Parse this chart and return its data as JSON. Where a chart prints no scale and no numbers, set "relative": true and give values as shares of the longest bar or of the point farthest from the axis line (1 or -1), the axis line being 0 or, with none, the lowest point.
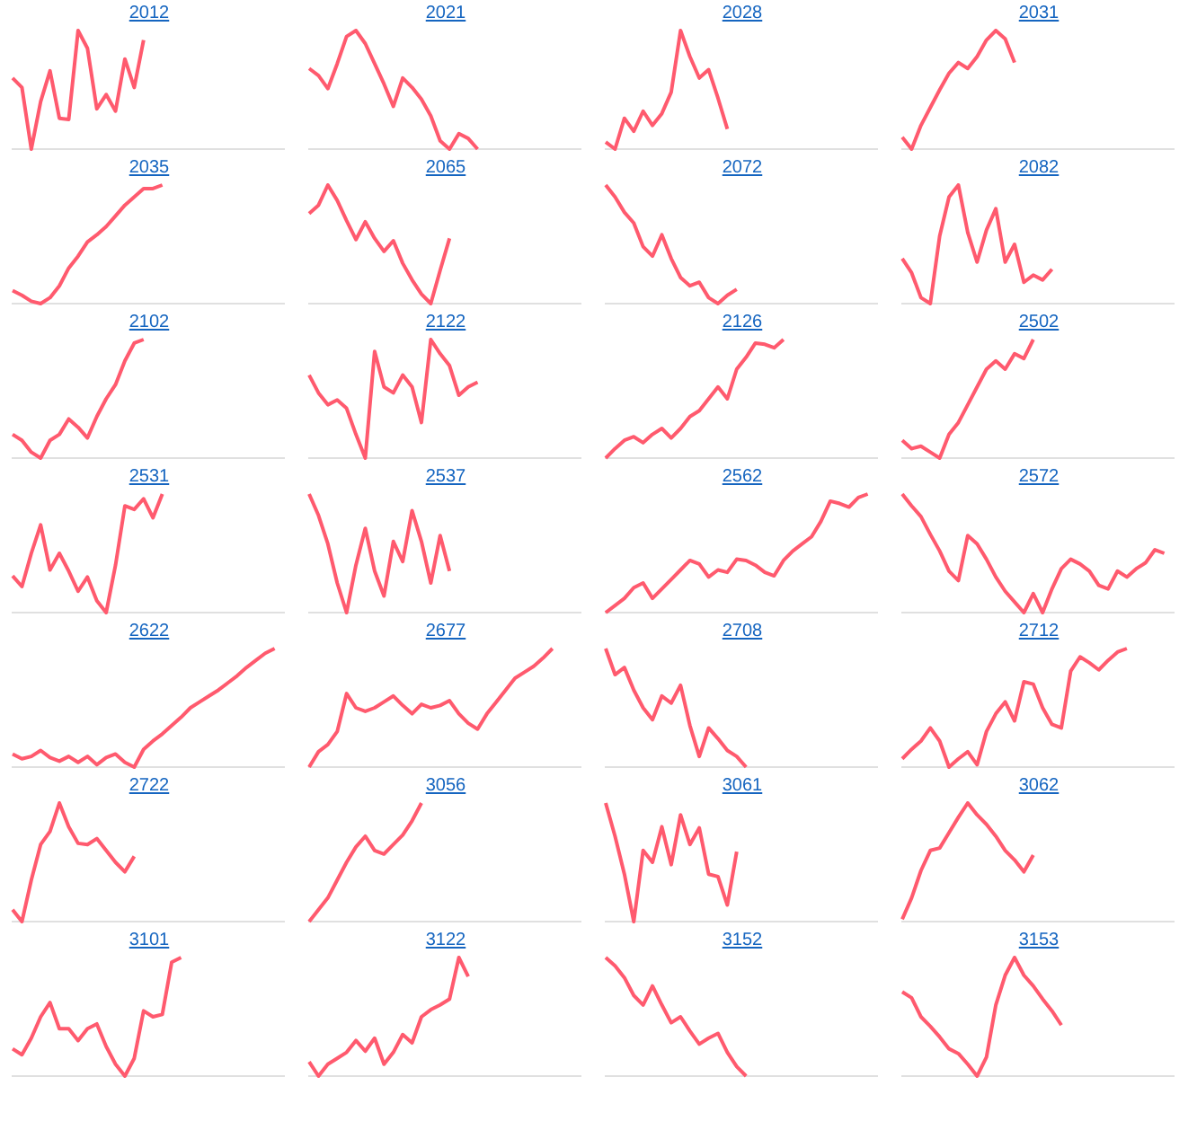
{
  "chart_data": [
    {
      "type": "line",
      "title": "2012",
      "relative": true,
      "marker": "none",
      "categories": [
        null,
        null,
        null,
        null,
        null,
        null,
        null,
        null,
        null,
        null,
        null,
        null,
        null,
        null,
        null,
        null,
        null,
        null,
        null,
        null,
        null,
        null,
        null,
        null,
        null,
        null,
        null,
        null,
        null,
        null
      ],
      "series": [
        {
          "color": "#ff5a6e",
          "values": [
            0.6,
            0.52,
            0.0,
            0.4,
            0.66,
            0.26,
            0.25,
            1.0,
            0.85,
            0.34,
            0.46,
            0.32,
            0.76,
            0.52,
            0.92,
            null,
            null,
            null,
            null,
            null,
            null,
            null,
            null,
            null,
            null,
            null,
            null,
            null,
            null,
            null
          ]
        }
      ]
    },
    {
      "type": "line",
      "title": "2021",
      "relative": true,
      "marker": "none",
      "categories": [
        null,
        null,
        null,
        null,
        null,
        null,
        null,
        null,
        null,
        null,
        null,
        null,
        null,
        null,
        null,
        null,
        null,
        null,
        null,
        null,
        null,
        null,
        null,
        null,
        null,
        null,
        null,
        null,
        null,
        null
      ],
      "series": [
        {
          "color": "#ff5a6e",
          "values": [
            0.68,
            0.62,
            0.51,
            0.72,
            0.95,
            1.0,
            0.89,
            0.72,
            0.55,
            0.36,
            0.6,
            0.52,
            0.42,
            0.28,
            0.07,
            0.0,
            0.13,
            0.09,
            0.0,
            null,
            null,
            null,
            null,
            null,
            null,
            null,
            null,
            null,
            null,
            null
          ]
        }
      ]
    },
    {
      "type": "line",
      "title": "2028",
      "relative": true,
      "marker": "none",
      "categories": [
        null,
        null,
        null,
        null,
        null,
        null,
        null,
        null,
        null,
        null,
        null,
        null,
        null,
        null,
        null,
        null,
        null,
        null,
        null,
        null,
        null,
        null,
        null,
        null,
        null,
        null,
        null,
        null,
        null,
        null
      ],
      "series": [
        {
          "color": "#ff5a6e",
          "values": [
            0.06,
            0.0,
            0.26,
            0.15,
            0.32,
            0.2,
            0.3,
            0.48,
            1.0,
            0.78,
            0.6,
            0.67,
            0.43,
            0.17,
            null,
            null,
            null,
            null,
            null,
            null,
            null,
            null,
            null,
            null,
            null,
            null,
            null,
            null,
            null,
            null
          ]
        }
      ]
    },
    {
      "type": "line",
      "title": "2031",
      "relative": true,
      "marker": "none",
      "categories": [
        null,
        null,
        null,
        null,
        null,
        null,
        null,
        null,
        null,
        null,
        null,
        null,
        null,
        null,
        null,
        null,
        null,
        null,
        null,
        null,
        null,
        null,
        null,
        null,
        null,
        null,
        null,
        null,
        null,
        null
      ],
      "series": [
        {
          "color": "#ff5a6e",
          "values": [
            0.1,
            0.0,
            0.2,
            0.35,
            0.5,
            0.64,
            0.73,
            0.68,
            0.78,
            0.92,
            1.0,
            0.93,
            0.73,
            null,
            null,
            null,
            null,
            null,
            null,
            null,
            null,
            null,
            null,
            null,
            null,
            null,
            null,
            null,
            null,
            null
          ]
        }
      ]
    },
    {
      "type": "line",
      "title": "2035",
      "relative": true,
      "marker": "none",
      "categories": [
        null,
        null,
        null,
        null,
        null,
        null,
        null,
        null,
        null,
        null,
        null,
        null,
        null,
        null,
        null,
        null,
        null,
        null,
        null,
        null,
        null,
        null,
        null,
        null,
        null,
        null,
        null,
        null,
        null,
        null
      ],
      "series": [
        {
          "color": "#ff5a6e",
          "values": [
            0.11,
            0.07,
            0.02,
            0.0,
            0.05,
            0.15,
            0.3,
            0.4,
            0.52,
            0.58,
            0.65,
            0.74,
            0.83,
            0.9,
            0.97,
            0.97,
            1.0,
            null,
            null,
            null,
            null,
            null,
            null,
            null,
            null,
            null,
            null,
            null,
            null,
            null
          ]
        }
      ]
    },
    {
      "type": "line",
      "title": "2065",
      "relative": true,
      "marker": "none",
      "categories": [
        null,
        null,
        null,
        null,
        null,
        null,
        null,
        null,
        null,
        null,
        null,
        null,
        null,
        null,
        null,
        null,
        null,
        null,
        null,
        null,
        null,
        null,
        null,
        null,
        null,
        null,
        null,
        null,
        null,
        null
      ],
      "series": [
        {
          "color": "#ff5a6e",
          "values": [
            0.76,
            0.83,
            1.0,
            0.87,
            0.7,
            0.54,
            0.69,
            0.55,
            0.44,
            0.53,
            0.34,
            0.2,
            0.08,
            0.0,
            0.28,
            0.55,
            null,
            null,
            null,
            null,
            null,
            null,
            null,
            null,
            null,
            null,
            null,
            null,
            null,
            null
          ]
        }
      ]
    },
    {
      "type": "line",
      "title": "2072",
      "relative": true,
      "marker": "none",
      "categories": [
        null,
        null,
        null,
        null,
        null,
        null,
        null,
        null,
        null,
        null,
        null,
        null,
        null,
        null,
        null,
        null,
        null,
        null,
        null,
        null,
        null,
        null,
        null,
        null,
        null,
        null,
        null,
        null,
        null,
        null
      ],
      "series": [
        {
          "color": "#ff5a6e",
          "values": [
            1.0,
            0.9,
            0.77,
            0.68,
            0.48,
            0.4,
            0.58,
            0.38,
            0.22,
            0.15,
            0.18,
            0.05,
            0.0,
            0.07,
            0.12,
            null,
            null,
            null,
            null,
            null,
            null,
            null,
            null,
            null,
            null,
            null,
            null,
            null,
            null,
            null
          ]
        }
      ]
    },
    {
      "type": "line",
      "title": "2082",
      "relative": true,
      "marker": "none",
      "categories": [
        null,
        null,
        null,
        null,
        null,
        null,
        null,
        null,
        null,
        null,
        null,
        null,
        null,
        null,
        null,
        null,
        null,
        null,
        null,
        null,
        null,
        null,
        null,
        null,
        null,
        null,
        null,
        null,
        null,
        null
      ],
      "series": [
        {
          "color": "#ff5a6e",
          "values": [
            0.38,
            0.26,
            0.05,
            0.0,
            0.57,
            0.9,
            1.0,
            0.6,
            0.35,
            0.62,
            0.8,
            0.35,
            0.5,
            0.18,
            0.24,
            0.2,
            0.29,
            null,
            null,
            null,
            null,
            null,
            null,
            null,
            null,
            null,
            null,
            null,
            null,
            null
          ]
        }
      ]
    },
    {
      "type": "line",
      "title": "2102",
      "relative": true,
      "marker": "none",
      "categories": [
        null,
        null,
        null,
        null,
        null,
        null,
        null,
        null,
        null,
        null,
        null,
        null,
        null,
        null,
        null,
        null,
        null,
        null,
        null,
        null,
        null,
        null,
        null,
        null,
        null,
        null,
        null,
        null,
        null,
        null
      ],
      "series": [
        {
          "color": "#ff5a6e",
          "values": [
            0.2,
            0.15,
            0.05,
            0.0,
            0.15,
            0.2,
            0.33,
            0.26,
            0.17,
            0.35,
            0.5,
            0.62,
            0.82,
            0.97,
            1.0,
            null,
            null,
            null,
            null,
            null,
            null,
            null,
            null,
            null,
            null,
            null,
            null,
            null,
            null,
            null
          ]
        }
      ]
    },
    {
      "type": "line",
      "title": "2122",
      "relative": true,
      "marker": "none",
      "categories": [
        null,
        null,
        null,
        null,
        null,
        null,
        null,
        null,
        null,
        null,
        null,
        null,
        null,
        null,
        null,
        null,
        null,
        null,
        null,
        null,
        null,
        null,
        null,
        null,
        null,
        null,
        null,
        null,
        null,
        null
      ],
      "series": [
        {
          "color": "#ff5a6e",
          "values": [
            0.7,
            0.55,
            0.45,
            0.49,
            0.42,
            0.2,
            0.0,
            0.9,
            0.6,
            0.55,
            0.7,
            0.6,
            0.3,
            1.0,
            0.88,
            0.78,
            0.53,
            0.6,
            0.64,
            null,
            null,
            null,
            null,
            null,
            null,
            null,
            null,
            null,
            null,
            null
          ]
        }
      ]
    },
    {
      "type": "line",
      "title": "2126",
      "relative": true,
      "marker": "none",
      "categories": [
        null,
        null,
        null,
        null,
        null,
        null,
        null,
        null,
        null,
        null,
        null,
        null,
        null,
        null,
        null,
        null,
        null,
        null,
        null,
        null,
        null,
        null,
        null,
        null,
        null,
        null,
        null,
        null,
        null,
        null
      ],
      "series": [
        {
          "color": "#ff5a6e",
          "values": [
            0.0,
            0.08,
            0.15,
            0.18,
            0.13,
            0.2,
            0.25,
            0.17,
            0.25,
            0.35,
            0.4,
            0.5,
            0.6,
            0.5,
            0.75,
            0.85,
            0.97,
            0.96,
            0.93,
            1.0,
            null,
            null,
            null,
            null,
            null,
            null,
            null,
            null,
            null,
            null
          ]
        }
      ]
    },
    {
      "type": "line",
      "title": "2502",
      "relative": true,
      "marker": "none",
      "categories": [
        null,
        null,
        null,
        null,
        null,
        null,
        null,
        null,
        null,
        null,
        null,
        null,
        null,
        null,
        null,
        null,
        null,
        null,
        null,
        null,
        null,
        null,
        null,
        null,
        null,
        null,
        null,
        null,
        null,
        null
      ],
      "series": [
        {
          "color": "#ff5a6e",
          "values": [
            0.15,
            0.08,
            0.1,
            0.05,
            0.0,
            0.2,
            0.3,
            0.45,
            0.6,
            0.75,
            0.82,
            0.75,
            0.88,
            0.84,
            1.0,
            null,
            null,
            null,
            null,
            null,
            null,
            null,
            null,
            null,
            null,
            null,
            null,
            null,
            null,
            null
          ]
        }
      ]
    },
    {
      "type": "line",
      "title": "2531",
      "relative": true,
      "marker": "none",
      "categories": [
        null,
        null,
        null,
        null,
        null,
        null,
        null,
        null,
        null,
        null,
        null,
        null,
        null,
        null,
        null,
        null,
        null,
        null,
        null,
        null,
        null,
        null,
        null,
        null,
        null,
        null,
        null,
        null,
        null,
        null
      ],
      "series": [
        {
          "color": "#ff5a6e",
          "values": [
            0.31,
            0.22,
            0.5,
            0.74,
            0.36,
            0.5,
            0.35,
            0.18,
            0.3,
            0.1,
            0.0,
            0.4,
            0.9,
            0.87,
            0.96,
            0.8,
            1.0,
            null,
            null,
            null,
            null,
            null,
            null,
            null,
            null,
            null,
            null,
            null,
            null,
            null
          ]
        }
      ]
    },
    {
      "type": "line",
      "title": "2537",
      "relative": true,
      "marker": "none",
      "categories": [
        null,
        null,
        null,
        null,
        null,
        null,
        null,
        null,
        null,
        null,
        null,
        null,
        null,
        null,
        null,
        null,
        null,
        null,
        null,
        null,
        null,
        null,
        null,
        null,
        null,
        null,
        null,
        null,
        null,
        null
      ],
      "series": [
        {
          "color": "#ff5a6e",
          "values": [
            1.0,
            0.82,
            0.58,
            0.25,
            0.0,
            0.4,
            0.71,
            0.35,
            0.14,
            0.6,
            0.43,
            0.86,
            0.6,
            0.25,
            0.65,
            0.35,
            null,
            null,
            null,
            null,
            null,
            null,
            null,
            null,
            null,
            null,
            null,
            null,
            null,
            null
          ]
        }
      ]
    },
    {
      "type": "line",
      "title": "2562",
      "relative": true,
      "marker": "none",
      "categories": [
        null,
        null,
        null,
        null,
        null,
        null,
        null,
        null,
        null,
        null,
        null,
        null,
        null,
        null,
        null,
        null,
        null,
        null,
        null,
        null,
        null,
        null,
        null,
        null,
        null,
        null,
        null,
        null,
        null,
        null
      ],
      "series": [
        {
          "color": "#ff5a6e",
          "values": [
            0.0,
            0.06,
            0.12,
            0.21,
            0.25,
            0.12,
            0.2,
            0.28,
            0.36,
            0.44,
            0.41,
            0.3,
            0.36,
            0.34,
            0.45,
            0.44,
            0.4,
            0.34,
            0.31,
            0.44,
            0.52,
            0.58,
            0.64,
            0.77,
            0.94,
            0.92,
            0.89,
            0.97,
            1.0,
            null
          ]
        }
      ]
    },
    {
      "type": "line",
      "title": "2572",
      "relative": true,
      "marker": "none",
      "categories": [
        null,
        null,
        null,
        null,
        null,
        null,
        null,
        null,
        null,
        null,
        null,
        null,
        null,
        null,
        null,
        null,
        null,
        null,
        null,
        null,
        null,
        null,
        null,
        null,
        null,
        null,
        null,
        null,
        null,
        null
      ],
      "series": [
        {
          "color": "#ff5a6e",
          "values": [
            1.0,
            0.9,
            0.81,
            0.66,
            0.52,
            0.35,
            0.27,
            0.65,
            0.58,
            0.45,
            0.3,
            0.18,
            0.09,
            0.0,
            0.16,
            0.0,
            0.2,
            0.37,
            0.45,
            0.41,
            0.35,
            0.23,
            0.2,
            0.35,
            0.3,
            0.37,
            0.42,
            0.53,
            0.5,
            null
          ]
        }
      ]
    },
    {
      "type": "line",
      "title": "2622",
      "relative": true,
      "marker": "none",
      "categories": [
        null,
        null,
        null,
        null,
        null,
        null,
        null,
        null,
        null,
        null,
        null,
        null,
        null,
        null,
        null,
        null,
        null,
        null,
        null,
        null,
        null,
        null,
        null,
        null,
        null,
        null,
        null,
        null,
        null,
        null
      ],
      "series": [
        {
          "color": "#ff5a6e",
          "values": [
            0.11,
            0.07,
            0.09,
            0.14,
            0.08,
            0.05,
            0.09,
            0.04,
            0.09,
            0.02,
            0.08,
            0.11,
            0.04,
            0.0,
            0.15,
            0.22,
            0.28,
            0.35,
            0.42,
            0.5,
            0.55,
            0.6,
            0.65,
            0.71,
            0.77,
            0.84,
            0.9,
            0.96,
            1.0,
            null
          ]
        }
      ]
    },
    {
      "type": "line",
      "title": "2677",
      "relative": true,
      "marker": "none",
      "categories": [
        null,
        null,
        null,
        null,
        null,
        null,
        null,
        null,
        null,
        null,
        null,
        null,
        null,
        null,
        null,
        null,
        null,
        null,
        null,
        null,
        null,
        null,
        null,
        null,
        null,
        null,
        null,
        null,
        null,
        null
      ],
      "series": [
        {
          "color": "#ff5a6e",
          "values": [
            0.0,
            0.13,
            0.19,
            0.3,
            0.62,
            0.5,
            0.47,
            0.5,
            0.55,
            0.6,
            0.52,
            0.45,
            0.53,
            0.5,
            0.52,
            0.56,
            0.45,
            0.37,
            0.32,
            0.45,
            0.55,
            0.65,
            0.75,
            0.8,
            0.85,
            0.92,
            1.0,
            null,
            null,
            null
          ]
        }
      ]
    },
    {
      "type": "line",
      "title": "2708",
      "relative": true,
      "marker": "none",
      "categories": [
        null,
        null,
        null,
        null,
        null,
        null,
        null,
        null,
        null,
        null,
        null,
        null,
        null,
        null,
        null,
        null,
        null,
        null,
        null,
        null,
        null,
        null,
        null,
        null,
        null,
        null,
        null,
        null,
        null,
        null
      ],
      "series": [
        {
          "color": "#ff5a6e",
          "values": [
            1.0,
            0.78,
            0.84,
            0.65,
            0.5,
            0.4,
            0.6,
            0.54,
            0.69,
            0.35,
            0.09,
            0.33,
            0.24,
            0.14,
            0.09,
            0.0,
            null,
            null,
            null,
            null,
            null,
            null,
            null,
            null,
            null,
            null,
            null,
            null,
            null,
            null
          ]
        }
      ]
    },
    {
      "type": "line",
      "title": "2712",
      "relative": true,
      "marker": "none",
      "categories": [
        null,
        null,
        null,
        null,
        null,
        null,
        null,
        null,
        null,
        null,
        null,
        null,
        null,
        null,
        null,
        null,
        null,
        null,
        null,
        null,
        null,
        null,
        null,
        null,
        null,
        null,
        null,
        null,
        null,
        null
      ],
      "series": [
        {
          "color": "#ff5a6e",
          "values": [
            0.07,
            0.15,
            0.22,
            0.33,
            0.22,
            0.0,
            0.07,
            0.13,
            0.02,
            0.3,
            0.45,
            0.55,
            0.39,
            0.72,
            0.7,
            0.5,
            0.36,
            0.33,
            0.81,
            0.93,
            0.88,
            0.82,
            0.9,
            0.97,
            1.0,
            null,
            null,
            null,
            null,
            null
          ]
        }
      ]
    },
    {
      "type": "line",
      "title": "2722",
      "relative": true,
      "marker": "none",
      "categories": [
        null,
        null,
        null,
        null,
        null,
        null,
        null,
        null,
        null,
        null,
        null,
        null,
        null,
        null,
        null,
        null,
        null,
        null,
        null,
        null,
        null,
        null,
        null,
        null,
        null,
        null,
        null,
        null,
        null,
        null
      ],
      "series": [
        {
          "color": "#ff5a6e",
          "values": [
            0.1,
            0.0,
            0.35,
            0.65,
            0.76,
            1.0,
            0.8,
            0.66,
            0.65,
            0.7,
            0.6,
            0.5,
            0.42,
            0.55,
            null,
            null,
            null,
            null,
            null,
            null,
            null,
            null,
            null,
            null,
            null,
            null,
            null,
            null,
            null,
            null
          ]
        }
      ]
    },
    {
      "type": "line",
      "title": "3056",
      "relative": true,
      "marker": "none",
      "categories": [
        null,
        null,
        null,
        null,
        null,
        null,
        null,
        null,
        null,
        null,
        null,
        null,
        null,
        null,
        null,
        null,
        null,
        null,
        null,
        null,
        null,
        null,
        null,
        null,
        null,
        null,
        null,
        null,
        null,
        null
      ],
      "series": [
        {
          "color": "#ff5a6e",
          "values": [
            0.0,
            0.1,
            0.2,
            0.35,
            0.5,
            0.63,
            0.72,
            0.6,
            0.57,
            0.65,
            0.73,
            0.85,
            1.0,
            null,
            null,
            null,
            null,
            null,
            null,
            null,
            null,
            null,
            null,
            null,
            null,
            null,
            null,
            null,
            null,
            null
          ]
        }
      ]
    },
    {
      "type": "line",
      "title": "3061",
      "relative": true,
      "marker": "none",
      "categories": [
        null,
        null,
        null,
        null,
        null,
        null,
        null,
        null,
        null,
        null,
        null,
        null,
        null,
        null,
        null,
        null,
        null,
        null,
        null,
        null,
        null,
        null,
        null,
        null,
        null,
        null,
        null,
        null,
        null,
        null
      ],
      "series": [
        {
          "color": "#ff5a6e",
          "values": [
            1.0,
            0.72,
            0.4,
            0.0,
            0.6,
            0.5,
            0.8,
            0.48,
            0.9,
            0.65,
            0.79,
            0.4,
            0.38,
            0.14,
            0.59,
            null,
            null,
            null,
            null,
            null,
            null,
            null,
            null,
            null,
            null,
            null,
            null,
            null,
            null,
            null
          ]
        }
      ]
    },
    {
      "type": "line",
      "title": "3062",
      "relative": true,
      "marker": "none",
      "categories": [
        null,
        null,
        null,
        null,
        null,
        null,
        null,
        null,
        null,
        null,
        null,
        null,
        null,
        null,
        null,
        null,
        null,
        null,
        null,
        null,
        null,
        null,
        null,
        null,
        null,
        null,
        null,
        null,
        null,
        null
      ],
      "series": [
        {
          "color": "#ff5a6e",
          "values": [
            0.02,
            0.2,
            0.43,
            0.6,
            0.62,
            0.75,
            0.88,
            1.0,
            0.9,
            0.82,
            0.72,
            0.6,
            0.52,
            0.42,
            0.56,
            null,
            null,
            null,
            null,
            null,
            null,
            null,
            null,
            null,
            null,
            null,
            null,
            null,
            null,
            null
          ]
        }
      ]
    },
    {
      "type": "line",
      "title": "3101",
      "relative": true,
      "marker": "none",
      "categories": [
        null,
        null,
        null,
        null,
        null,
        null,
        null,
        null,
        null,
        null,
        null,
        null,
        null,
        null,
        null,
        null,
        null,
        null,
        null,
        null,
        null,
        null,
        null,
        null,
        null,
        null,
        null,
        null,
        null,
        null
      ],
      "series": [
        {
          "color": "#ff5a6e",
          "values": [
            0.23,
            0.18,
            0.32,
            0.5,
            0.62,
            0.4,
            0.4,
            0.3,
            0.4,
            0.44,
            0.25,
            0.1,
            0.0,
            0.15,
            0.55,
            0.5,
            0.52,
            0.96,
            1.0,
            null,
            null,
            null,
            null,
            null,
            null,
            null,
            null,
            null,
            null,
            null
          ]
        }
      ]
    },
    {
      "type": "line",
      "title": "3122",
      "relative": true,
      "marker": "none",
      "categories": [
        null,
        null,
        null,
        null,
        null,
        null,
        null,
        null,
        null,
        null,
        null,
        null,
        null,
        null,
        null,
        null,
        null,
        null,
        null,
        null,
        null,
        null,
        null,
        null,
        null,
        null,
        null,
        null,
        null,
        null
      ],
      "series": [
        {
          "color": "#ff5a6e",
          "values": [
            0.12,
            0.0,
            0.1,
            0.15,
            0.2,
            0.3,
            0.21,
            0.32,
            0.1,
            0.2,
            0.35,
            0.28,
            0.5,
            0.56,
            0.6,
            0.65,
            1.0,
            0.84,
            null,
            null,
            null,
            null,
            null,
            null,
            null,
            null,
            null,
            null,
            null,
            null
          ]
        }
      ]
    },
    {
      "type": "line",
      "title": "3152",
      "relative": true,
      "marker": "none",
      "categories": [
        null,
        null,
        null,
        null,
        null,
        null,
        null,
        null,
        null,
        null,
        null,
        null,
        null,
        null,
        null,
        null,
        null,
        null,
        null,
        null,
        null,
        null,
        null,
        null,
        null,
        null,
        null,
        null,
        null,
        null
      ],
      "series": [
        {
          "color": "#ff5a6e",
          "values": [
            1.0,
            0.93,
            0.83,
            0.68,
            0.6,
            0.76,
            0.6,
            0.45,
            0.5,
            0.38,
            0.27,
            0.32,
            0.36,
            0.2,
            0.08,
            0.0,
            null,
            null,
            null,
            null,
            null,
            null,
            null,
            null,
            null,
            null,
            null,
            null,
            null,
            null
          ]
        }
      ]
    },
    {
      "type": "line",
      "title": "3153",
      "relative": true,
      "marker": "none",
      "categories": [
        null,
        null,
        null,
        null,
        null,
        null,
        null,
        null,
        null,
        null,
        null,
        null,
        null,
        null,
        null,
        null,
        null,
        null,
        null,
        null,
        null,
        null,
        null,
        null,
        null,
        null,
        null,
        null,
        null,
        null
      ],
      "series": [
        {
          "color": "#ff5a6e",
          "values": [
            0.71,
            0.66,
            0.5,
            0.42,
            0.33,
            0.23,
            0.19,
            0.1,
            0.0,
            0.16,
            0.6,
            0.85,
            1.0,
            0.85,
            0.76,
            0.65,
            0.55,
            0.43,
            null,
            null,
            null,
            null,
            null,
            null,
            null,
            null,
            null,
            null,
            null,
            null
          ]
        }
      ]
    }
  ]
}
